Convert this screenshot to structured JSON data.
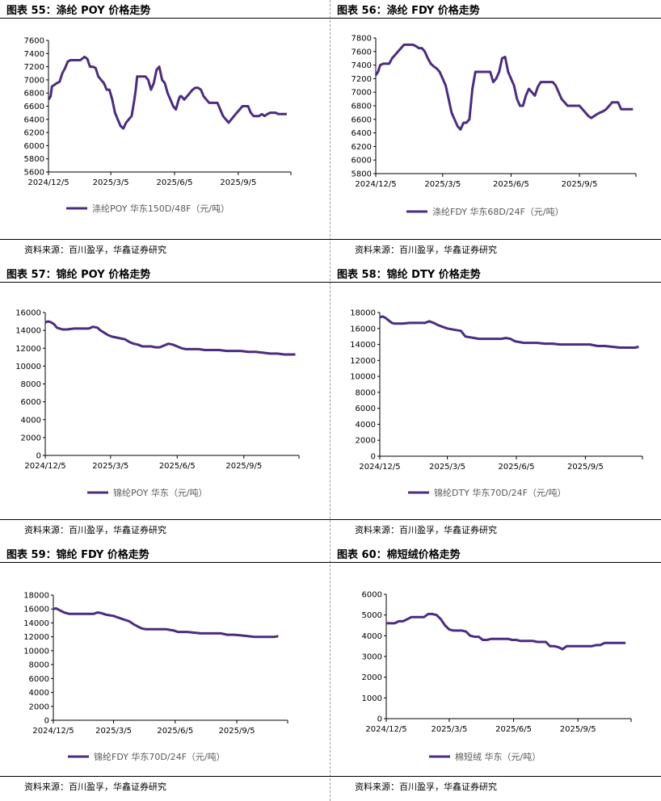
{
  "source_text": "资料来源：百川盈孚，华鑫证券研究",
  "line_color": "#4B2C82",
  "chart_data": [
    {
      "type": "line",
      "title": "图表 55：涤纶 POY 价格走势",
      "legend": "涤纶POY 华东150D/48F（元/吨）",
      "yticks": [
        5600,
        5800,
        6000,
        6200,
        6400,
        6600,
        6800,
        7000,
        7200,
        7400,
        7600
      ],
      "ylim": [
        5600,
        7600
      ],
      "xticks": [
        "2024/12/5",
        "2025/3/5",
        "2025/6/5",
        "2025/9/5"
      ],
      "xtick_days": [
        0,
        90,
        182,
        274
      ],
      "xlim_days": [
        0,
        350
      ],
      "series": [
        {
          "name": "涤纶POY 华东150D/48F（元/吨）",
          "x": [
            0,
            3,
            5,
            8,
            12,
            16,
            20,
            24,
            28,
            32,
            36,
            40,
            46,
            52,
            56,
            60,
            64,
            68,
            72,
            76,
            80,
            84,
            88,
            92,
            96,
            100,
            104,
            108,
            112,
            116,
            120,
            124,
            126,
            128,
            132,
            136,
            140,
            144,
            148,
            152,
            156,
            160,
            164,
            168,
            172,
            176,
            180,
            184,
            188,
            190,
            192,
            196,
            200,
            204,
            208,
            212,
            216,
            220,
            224,
            228,
            232,
            236,
            240,
            244,
            248,
            252,
            256,
            260,
            264,
            268,
            272,
            276,
            280,
            284,
            288,
            292,
            296,
            300,
            304,
            308,
            312,
            316,
            320,
            324,
            328,
            332,
            334,
            336,
            340,
            344
          ],
          "values": [
            6700,
            6750,
            6900,
            6920,
            6950,
            6970,
            7100,
            7180,
            7280,
            7300,
            7300,
            7300,
            7300,
            7350,
            7320,
            7200,
            7200,
            7180,
            7050,
            7000,
            6950,
            6850,
            6850,
            6700,
            6500,
            6400,
            6300,
            6260,
            6350,
            6400,
            6450,
            6700,
            6850,
            7050,
            7050,
            7050,
            7050,
            7000,
            6850,
            6950,
            7150,
            7200,
            7000,
            6950,
            6800,
            6700,
            6600,
            6550,
            6700,
            6750,
            6750,
            6700,
            6750,
            6800,
            6850,
            6880,
            6880,
            6850,
            6750,
            6700,
            6650,
            6650,
            6650,
            6650,
            6550,
            6450,
            6400,
            6350,
            6400,
            6450,
            6500,
            6550,
            6600,
            6600,
            6600,
            6500,
            6450,
            6450,
            6450,
            6480,
            6450,
            6480,
            6500,
            6500,
            6500,
            6480,
            6480,
            6480,
            6480,
            6480
          ]
        }
      ]
    },
    {
      "type": "line",
      "title": "图表 56：涤纶 FDY 价格走势",
      "legend": "涤纶FDY 华东68D/24F（元/吨）",
      "yticks": [
        5800,
        6000,
        6200,
        6400,
        6600,
        6800,
        7000,
        7200,
        7400,
        7600,
        7800
      ],
      "ylim": [
        5800,
        7800
      ],
      "xticks": [
        "2024/12/5",
        "2025/3/5",
        "2025/6/5",
        "2025/9/5"
      ],
      "xtick_days": [
        0,
        90,
        182,
        274
      ],
      "xlim_days": [
        0,
        350
      ],
      "series": [
        {
          "name": "涤纶FDY 华东68D/24F（元/吨）",
          "x": [
            0,
            3,
            6,
            10,
            14,
            18,
            22,
            26,
            30,
            34,
            38,
            42,
            46,
            50,
            54,
            58,
            62,
            66,
            70,
            74,
            78,
            82,
            86,
            90,
            94,
            98,
            102,
            106,
            110,
            114,
            118,
            122,
            126,
            130,
            134,
            138,
            142,
            146,
            150,
            154,
            158,
            162,
            166,
            170,
            174,
            178,
            182,
            186,
            190,
            194,
            198,
            202,
            206,
            210,
            214,
            218,
            222,
            226,
            230,
            234,
            238,
            242,
            246,
            250,
            254,
            258,
            262,
            266,
            270,
            274,
            278,
            282,
            286,
            290,
            294,
            298,
            302,
            306,
            310,
            314,
            318,
            322,
            326,
            330,
            334,
            338,
            342,
            346
          ],
          "values": [
            7250,
            7300,
            7400,
            7420,
            7420,
            7420,
            7500,
            7550,
            7600,
            7650,
            7700,
            7700,
            7700,
            7700,
            7680,
            7650,
            7650,
            7600,
            7500,
            7420,
            7380,
            7350,
            7300,
            7200,
            7100,
            6900,
            6700,
            6600,
            6500,
            6450,
            6550,
            6550,
            6600,
            7050,
            7300,
            7300,
            7300,
            7300,
            7300,
            7300,
            7150,
            7200,
            7300,
            7500,
            7520,
            7300,
            7200,
            7100,
            6900,
            6800,
            6800,
            6950,
            7050,
            7000,
            6950,
            7080,
            7150,
            7150,
            7150,
            7150,
            7150,
            7100,
            7000,
            6900,
            6850,
            6800,
            6800,
            6800,
            6800,
            6800,
            6750,
            6700,
            6650,
            6620,
            6650,
            6680,
            6700,
            6720,
            6750,
            6800,
            6850,
            6850,
            6850,
            6750,
            6750,
            6750,
            6750,
            6750
          ]
        }
      ]
    },
    {
      "type": "line",
      "title": "图表 57：锦纶 POY 价格走势",
      "legend": "锦纶POY 华东（元/吨）",
      "yticks": [
        0,
        2000,
        4000,
        6000,
        8000,
        10000,
        12000,
        14000,
        16000
      ],
      "ylim": [
        0,
        16000
      ],
      "xticks": [
        "2024/12/5",
        "2025/3/5",
        "2025/6/5",
        "2025/9/5"
      ],
      "xtick_days": [
        0,
        90,
        182,
        274
      ],
      "xlim_days": [
        0,
        350
      ],
      "series": [
        {
          "name": "锦纶POY 华东（元/吨）",
          "x": [
            0,
            4,
            8,
            12,
            16,
            20,
            24,
            30,
            40,
            50,
            60,
            66,
            72,
            76,
            80,
            86,
            92,
            98,
            104,
            110,
            116,
            122,
            128,
            134,
            140,
            146,
            152,
            158,
            164,
            170,
            176,
            182,
            188,
            194,
            200,
            206,
            212,
            220,
            230,
            240,
            250,
            260,
            270,
            280,
            290,
            300,
            310,
            320,
            330,
            340,
            345
          ],
          "values": [
            14900,
            15000,
            14900,
            14700,
            14300,
            14200,
            14100,
            14100,
            14200,
            14200,
            14200,
            14400,
            14300,
            14000,
            13800,
            13500,
            13300,
            13200,
            13100,
            13000,
            12700,
            12500,
            12400,
            12200,
            12200,
            12200,
            12100,
            12100,
            12300,
            12500,
            12400,
            12200,
            12000,
            11900,
            11900,
            11900,
            11900,
            11800,
            11800,
            11800,
            11700,
            11700,
            11700,
            11600,
            11600,
            11500,
            11400,
            11400,
            11300,
            11300,
            11300
          ]
        }
      ]
    },
    {
      "type": "line",
      "title": "图表 58：锦纶 DTY 价格走势",
      "legend": "锦纶DTY 华东70D/24F（元/吨）",
      "yticks": [
        0,
        2000,
        4000,
        6000,
        8000,
        10000,
        12000,
        14000,
        16000,
        18000
      ],
      "ylim": [
        0,
        18000
      ],
      "xticks": [
        "2024/12/5",
        "2025/3/5",
        "2025/6/5",
        "2025/9/5"
      ],
      "xtick_days": [
        0,
        90,
        182,
        274
      ],
      "xlim_days": [
        0,
        350
      ],
      "series": [
        {
          "name": "锦纶DTY 华东70D/24F（元/吨）",
          "x": [
            0,
            4,
            8,
            12,
            16,
            20,
            24,
            30,
            40,
            50,
            60,
            66,
            72,
            78,
            84,
            90,
            96,
            102,
            108,
            114,
            120,
            126,
            132,
            138,
            144,
            150,
            156,
            162,
            168,
            174,
            180,
            186,
            192,
            200,
            210,
            220,
            230,
            240,
            250,
            260,
            270,
            280,
            290,
            300,
            310,
            320,
            330,
            340,
            345
          ],
          "values": [
            17400,
            17500,
            17300,
            17000,
            16700,
            16600,
            16600,
            16600,
            16700,
            16700,
            16700,
            16900,
            16700,
            16400,
            16200,
            16000,
            15900,
            15800,
            15700,
            15000,
            14900,
            14800,
            14700,
            14700,
            14700,
            14700,
            14700,
            14700,
            14800,
            14700,
            14400,
            14300,
            14200,
            14200,
            14200,
            14100,
            14100,
            14000,
            14000,
            14000,
            14000,
            14000,
            13800,
            13800,
            13700,
            13600,
            13600,
            13600,
            13700
          ]
        }
      ]
    },
    {
      "type": "line",
      "title": "图表 59：锦纶 FDY 价格走势",
      "legend": "锦纶FDY 华东70D/24F（元/吨）",
      "yticks": [
        0,
        2000,
        4000,
        6000,
        8000,
        10000,
        12000,
        14000,
        16000,
        18000
      ],
      "ylim": [
        0,
        18000
      ],
      "xticks": [
        "2024/12/5",
        "2025/3/5",
        "2025/6/5",
        "2025/9/5"
      ],
      "xtick_days": [
        0,
        90,
        182,
        274
      ],
      "xlim_days": [
        0,
        350
      ],
      "series": [
        {
          "name": "锦纶FDY 华东70D/24F（元/吨）",
          "x": [
            0,
            4,
            8,
            12,
            16,
            20,
            24,
            30,
            40,
            50,
            60,
            66,
            72,
            78,
            84,
            90,
            96,
            102,
            108,
            114,
            120,
            126,
            132,
            138,
            144,
            150,
            156,
            162,
            168,
            174,
            180,
            186,
            192,
            200,
            210,
            220,
            230,
            240,
            250,
            260,
            270,
            280,
            290,
            300,
            310,
            320,
            330,
            336
          ],
          "values": [
            16000,
            16100,
            15900,
            15700,
            15500,
            15400,
            15300,
            15300,
            15300,
            15300,
            15300,
            15500,
            15400,
            15200,
            15100,
            15000,
            14800,
            14600,
            14400,
            14200,
            13800,
            13500,
            13200,
            13100,
            13100,
            13100,
            13100,
            13100,
            13100,
            13000,
            12900,
            12700,
            12700,
            12700,
            12600,
            12500,
            12500,
            12500,
            12500,
            12300,
            12300,
            12200,
            12100,
            12000,
            12000,
            12000,
            12000,
            12100
          ]
        }
      ]
    },
    {
      "type": "line",
      "title": "图表 60：棉短绒价格走势",
      "legend": "棉短绒 华东（元/吨）",
      "yticks": [
        0,
        1000,
        2000,
        3000,
        4000,
        5000,
        6000
      ],
      "ylim": [
        0,
        6000
      ],
      "xticks": [
        "2024/12/5",
        "2025/3/5",
        "2025/6/5",
        "2025/9/5"
      ],
      "xtick_days": [
        0,
        90,
        182,
        274
      ],
      "xlim_days": [
        0,
        350
      ],
      "series": [
        {
          "name": "棉短绒 华东（元/吨）",
          "x": [
            0,
            6,
            12,
            18,
            24,
            30,
            36,
            42,
            48,
            54,
            60,
            66,
            72,
            78,
            84,
            90,
            96,
            102,
            108,
            114,
            120,
            126,
            132,
            138,
            144,
            150,
            156,
            162,
            168,
            174,
            180,
            186,
            192,
            198,
            204,
            210,
            216,
            222,
            228,
            234,
            240,
            246,
            252,
            258,
            264,
            270,
            276,
            282,
            288,
            294,
            300,
            306,
            312,
            318,
            324,
            330,
            336,
            342
          ],
          "values": [
            4600,
            4600,
            4600,
            4700,
            4700,
            4800,
            4900,
            4900,
            4900,
            4900,
            5050,
            5050,
            5000,
            4800,
            4500,
            4300,
            4250,
            4250,
            4250,
            4200,
            4000,
            3950,
            3950,
            3800,
            3800,
            3850,
            3850,
            3850,
            3850,
            3850,
            3800,
            3800,
            3750,
            3750,
            3750,
            3750,
            3700,
            3700,
            3700,
            3500,
            3500,
            3450,
            3350,
            3500,
            3500,
            3500,
            3500,
            3500,
            3500,
            3500,
            3550,
            3550,
            3650,
            3650,
            3650,
            3650,
            3650,
            3650
          ]
        }
      ]
    }
  ]
}
